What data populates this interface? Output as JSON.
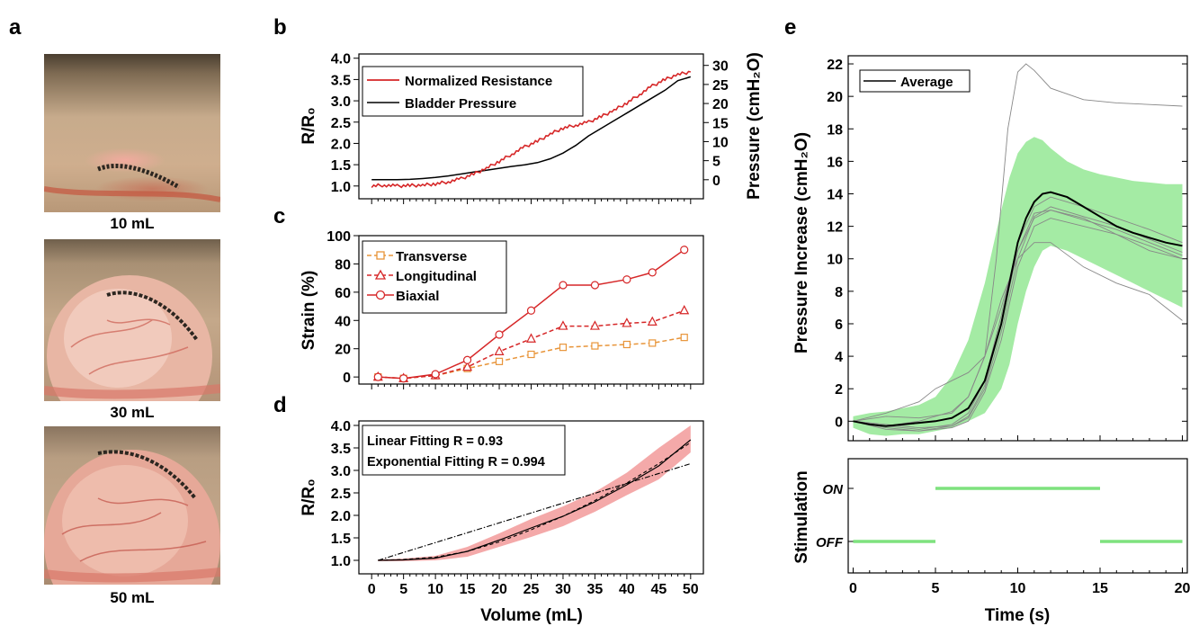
{
  "panels": {
    "a": {
      "letter": "a",
      "photos": [
        {
          "caption": "10 mL"
        },
        {
          "caption": "30 mL"
        },
        {
          "caption": "50 mL"
        }
      ]
    },
    "b": {
      "letter": "b"
    },
    "c": {
      "letter": "c"
    },
    "d": {
      "letter": "d"
    },
    "e": {
      "letter": "e"
    }
  },
  "colors": {
    "red": "#d62728",
    "orange": "#e8953a",
    "green": "#7ee27e",
    "band_red": "#f29a9a",
    "black": "#000000"
  },
  "chart_data": [
    {
      "id": "b",
      "type": "line",
      "xlim": [
        -2,
        52
      ],
      "ylabel": "R/R₀",
      "ylim": [
        0.7,
        4.1
      ],
      "yticks": [
        "1.0",
        "1.5",
        "2.0",
        "2.5",
        "3.0",
        "3.5",
        "4.0"
      ],
      "y2label": "Pressure (cmH₂O)",
      "y2lim": [
        -5,
        33
      ],
      "y2ticks": [
        "0",
        "5",
        "10",
        "15",
        "20",
        "25",
        "30"
      ],
      "legend": [
        "Normalized Resistance",
        "Bladder Pressure"
      ],
      "series": [
        {
          "name": "Normalized Resistance",
          "axis": "left",
          "color": "#d62728",
          "x": [
            0,
            2,
            4,
            6,
            8,
            10,
            12,
            14,
            16,
            18,
            20,
            22,
            24,
            26,
            28,
            30,
            32,
            34,
            36,
            38,
            40,
            42,
            44,
            46,
            48,
            50
          ],
          "y": [
            1.0,
            1.02,
            1.0,
            1.01,
            1.02,
            1.05,
            1.1,
            1.17,
            1.28,
            1.42,
            1.58,
            1.75,
            1.92,
            2.05,
            2.22,
            2.36,
            2.43,
            2.5,
            2.63,
            2.78,
            2.95,
            3.15,
            3.35,
            3.5,
            3.62,
            3.68
          ]
        },
        {
          "name": "Bladder Pressure",
          "axis": "right",
          "color": "#000000",
          "x": [
            0,
            2,
            4,
            6,
            8,
            10,
            12,
            14,
            16,
            18,
            20,
            22,
            24,
            26,
            28,
            30,
            32,
            34,
            36,
            38,
            40,
            42,
            44,
            46,
            48,
            50
          ],
          "y": [
            0,
            0,
            0,
            0.1,
            0.3,
            0.6,
            1.0,
            1.5,
            2.0,
            2.5,
            3.0,
            3.5,
            3.9,
            4.5,
            5.5,
            7.0,
            9.0,
            11.5,
            13.5,
            15.5,
            17.5,
            19.5,
            21.5,
            23.5,
            26,
            27
          ]
        }
      ]
    },
    {
      "id": "c",
      "type": "line",
      "xlim": [
        -2,
        52
      ],
      "ylabel": "Strain (%)",
      "ylim": [
        -5,
        100
      ],
      "yticks": [
        0,
        20,
        40,
        60,
        80,
        100
      ],
      "categories": [
        1,
        5,
        10,
        15,
        20,
        25,
        30,
        35,
        40,
        44,
        49
      ],
      "series": [
        {
          "name": "Transverse",
          "marker": "square",
          "dash": true,
          "color": "#e8953a",
          "values": [
            0,
            -1,
            1,
            6,
            11,
            16,
            21,
            22,
            23,
            24,
            28
          ]
        },
        {
          "name": "Longitudinal",
          "marker": "triangle",
          "dash": true,
          "color": "#d62728",
          "values": [
            0,
            -1,
            1,
            7,
            18,
            27,
            36,
            36,
            38,
            39,
            47
          ]
        },
        {
          "name": "Biaxial",
          "marker": "circle",
          "dash": false,
          "color": "#d62728",
          "values": [
            0,
            -1,
            2,
            12,
            30,
            47,
            65,
            65,
            69,
            74,
            90
          ]
        }
      ]
    },
    {
      "id": "d",
      "type": "line",
      "xlabel": "Volume (mL)",
      "xlim": [
        -2,
        52
      ],
      "xticks": [
        0,
        5,
        10,
        15,
        20,
        25,
        30,
        35,
        40,
        45,
        50
      ],
      "ylabel": "R/R₀",
      "ylim": [
        0.7,
        4.1
      ],
      "yticks": [
        "1.0",
        "1.5",
        "2.0",
        "2.5",
        "3.0",
        "3.5",
        "4.0"
      ],
      "annotations": [
        "Linear Fitting R = 0.93",
        "Exponential Fitting R = 0.994"
      ],
      "series": [
        {
          "name": "mean",
          "color": "#000000",
          "x": [
            1,
            5,
            10,
            15,
            20,
            25,
            30,
            35,
            40,
            45,
            50
          ],
          "y": [
            1.0,
            1.01,
            1.05,
            1.2,
            1.45,
            1.72,
            1.98,
            2.3,
            2.68,
            3.1,
            3.68
          ],
          "band_upper": [
            1.02,
            1.04,
            1.1,
            1.3,
            1.6,
            1.92,
            2.2,
            2.52,
            2.95,
            3.5,
            4.0
          ],
          "band_lower": [
            0.98,
            0.98,
            1.0,
            1.08,
            1.3,
            1.52,
            1.76,
            2.08,
            2.45,
            2.8,
            3.4
          ]
        },
        {
          "name": "linear fit",
          "style": "dashdot",
          "color": "#000000",
          "x": [
            1,
            50
          ],
          "y": [
            1.0,
            3.15
          ]
        },
        {
          "name": "exponential fit",
          "style": "dashed",
          "color": "#000000",
          "x": [
            1,
            5,
            10,
            15,
            20,
            25,
            30,
            35,
            40,
            45,
            50
          ],
          "y": [
            1.0,
            1.02,
            1.07,
            1.2,
            1.41,
            1.68,
            1.98,
            2.33,
            2.72,
            3.15,
            3.62
          ]
        }
      ]
    },
    {
      "id": "e",
      "type": "line",
      "ylabel": "Pressure Increase (cmH₂O)",
      "ylim": [
        -1.2,
        22.5
      ],
      "yticks": [
        0,
        2,
        4,
        6,
        8,
        10,
        12,
        14,
        16,
        18,
        20,
        22
      ],
      "xlim": [
        -0.3,
        20.3
      ],
      "legend": [
        "Average"
      ],
      "series": [
        {
          "name": "Average",
          "color": "#000000",
          "x": [
            0,
            1,
            2,
            3,
            4,
            5,
            6,
            7,
            8,
            9,
            9.5,
            10,
            10.5,
            11,
            11.5,
            12,
            13,
            14,
            15,
            16,
            17,
            18,
            19,
            20
          ],
          "y": [
            0,
            -0.2,
            -0.3,
            -0.2,
            -0.1,
            0,
            0.2,
            0.8,
            2.5,
            6,
            8.5,
            11,
            12.5,
            13.5,
            14,
            14.1,
            13.8,
            13.2,
            12.6,
            12,
            11.6,
            11.3,
            11,
            10.8
          ],
          "band_upper": [
            0.3,
            0.5,
            0.6,
            0.8,
            1.0,
            1.5,
            2.8,
            5,
            8.5,
            13,
            15,
            16.5,
            17.2,
            17.5,
            17.3,
            16.8,
            16,
            15.5,
            15.2,
            15,
            14.8,
            14.7,
            14.6,
            14.6
          ],
          "band_lower": [
            -0.4,
            -0.8,
            -0.9,
            -0.8,
            -0.8,
            -0.6,
            -0.4,
            0,
            0.5,
            2,
            3.5,
            6,
            8,
            9.5,
            10.5,
            10.8,
            10.5,
            10,
            9.5,
            9,
            8.5,
            8,
            7.5,
            7
          ]
        },
        {
          "name": "",
          "color": "#888888",
          "thin": true,
          "x": [
            0,
            2,
            4,
            6,
            7,
            8,
            8.7,
            9.4,
            10,
            10.5,
            11,
            12,
            14,
            16,
            18,
            20
          ],
          "y": [
            0,
            -0.3,
            0,
            0.6,
            1.5,
            4,
            10,
            18,
            21.5,
            22,
            21.6,
            20.5,
            19.8,
            19.6,
            19.5,
            19.4
          ]
        },
        {
          "name": "",
          "color": "#888888",
          "thin": true,
          "x": [
            0,
            2,
            4,
            6,
            7,
            8,
            9,
            10,
            11,
            12,
            14,
            16,
            18,
            20
          ],
          "y": [
            0,
            0.3,
            0.2,
            0.5,
            1.5,
            4,
            7.5,
            10,
            11,
            11,
            9.5,
            8.5,
            7.8,
            6.2
          ]
        },
        {
          "name": "",
          "color": "#888888",
          "thin": true,
          "x": [
            0,
            2,
            4,
            5,
            6,
            7,
            8,
            9,
            10,
            11,
            12,
            14,
            16,
            18,
            20
          ],
          "y": [
            0,
            0.5,
            1.2,
            2.0,
            2.5,
            3.0,
            4.0,
            7.0,
            10.5,
            12.5,
            13.0,
            12.5,
            11.5,
            10.5,
            10.0
          ]
        },
        {
          "name": "",
          "color": "#888888",
          "thin": true,
          "x": [
            0,
            2,
            4,
            6,
            7,
            8,
            9,
            10,
            11,
            12,
            14,
            16,
            18,
            20
          ],
          "y": [
            0,
            -0.3,
            -0.5,
            -0.2,
            0.5,
            2.5,
            6.5,
            11,
            13.2,
            13.8,
            13.2,
            12.5,
            11.8,
            11.0
          ]
        },
        {
          "name": "",
          "color": "#888888",
          "thin": true,
          "x": [
            0,
            2,
            4,
            6,
            7,
            8,
            9,
            10,
            11,
            12,
            14,
            16,
            18,
            20
          ],
          "y": [
            0,
            -0.5,
            -0.6,
            -0.3,
            0.2,
            2,
            5.5,
            10,
            12.6,
            13.2,
            12.6,
            12.0,
            11.2,
            10.4
          ]
        },
        {
          "name": "",
          "color": "#888888",
          "thin": true,
          "x": [
            0,
            2,
            4,
            6,
            7,
            8,
            9,
            10,
            11,
            12,
            14,
            16,
            18,
            20
          ],
          "y": [
            0,
            -0.2,
            -0.4,
            -0.3,
            0.3,
            2.2,
            6,
            10.5,
            12.8,
            13.0,
            12.4,
            11.8,
            11.0,
            10.2
          ]
        },
        {
          "name": "",
          "color": "#888888",
          "thin": true,
          "x": [
            0,
            2,
            4,
            6,
            7,
            8,
            9,
            10,
            11,
            12,
            14,
            16,
            18,
            20
          ],
          "y": [
            0,
            -0.4,
            -0.6,
            -0.4,
            0,
            1.8,
            5,
            9.5,
            12,
            12.5,
            12,
            11.5,
            10.8,
            10.0
          ]
        }
      ]
    },
    {
      "id": "stim",
      "type": "line",
      "xlabel": "Time (s)",
      "xlim": [
        -0.3,
        20.3
      ],
      "xticks": [
        0,
        5,
        10,
        15,
        20
      ],
      "ylabel": "Stimulation",
      "ycategories": [
        "OFF",
        "ON"
      ],
      "series": [
        {
          "name": "",
          "color": "#7ee27e",
          "segments": [
            {
              "x": [
                0,
                5
              ],
              "level": "OFF"
            },
            {
              "x": [
                5,
                15
              ],
              "level": "ON"
            },
            {
              "x": [
                15,
                20
              ],
              "level": "OFF"
            }
          ]
        }
      ]
    }
  ]
}
